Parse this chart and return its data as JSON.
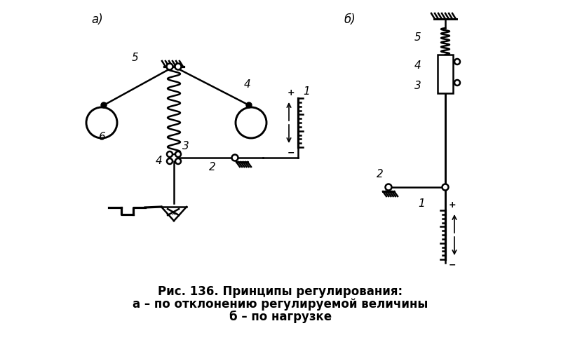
{
  "title_line1": "Рис. 136. Принципы регулирования:",
  "title_line2": "а – по отклонению регулируемой величины",
  "title_line3": "б – по нагрузке",
  "bg_color": "#ffffff",
  "line_color": "#000000",
  "label_a": "а)",
  "label_b": "б)"
}
